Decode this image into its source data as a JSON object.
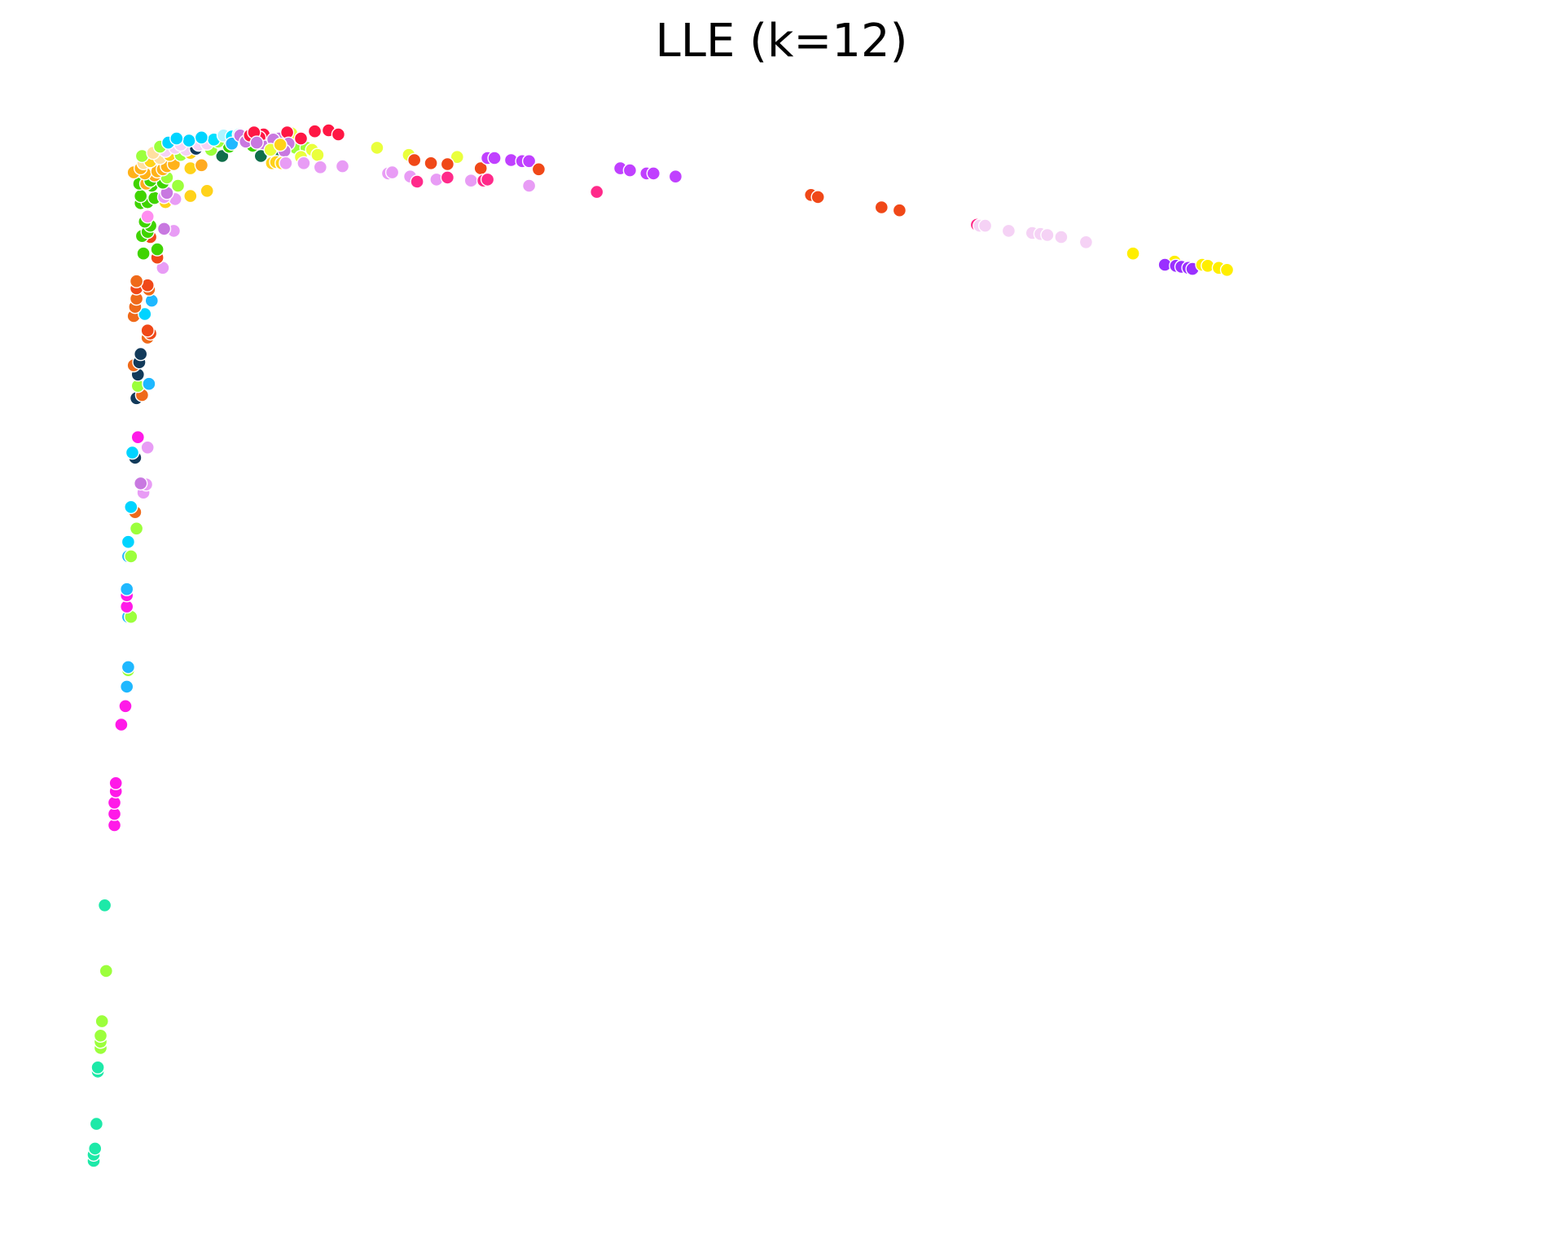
{
  "chart_data": {
    "type": "scatter",
    "title": "LLE (k=12)",
    "xlabel": "",
    "ylabel": "",
    "axes_visible": false,
    "grid": false,
    "legend": "none",
    "xlim": [
      0.0,
      1.0
    ],
    "ylim": [
      0.0,
      1.0
    ],
    "points": [
      {
        "x": 0.0,
        "y": 0.0,
        "color": "#1de9a8"
      },
      {
        "x": 0.0,
        "y": 0.006,
        "color": "#1de9a8"
      },
      {
        "x": 0.001,
        "y": 0.012,
        "color": "#1de9a8"
      },
      {
        "x": 0.002,
        "y": 0.036,
        "color": "#1de9a8"
      },
      {
        "x": 0.003,
        "y": 0.087,
        "color": "#1de9a8"
      },
      {
        "x": 0.003,
        "y": 0.091,
        "color": "#1de9a8"
      },
      {
        "x": 0.005,
        "y": 0.11,
        "color": "#9cff3c"
      },
      {
        "x": 0.005,
        "y": 0.116,
        "color": "#9cff3c"
      },
      {
        "x": 0.005,
        "y": 0.122,
        "color": "#9cff3c"
      },
      {
        "x": 0.006,
        "y": 0.136,
        "color": "#9cff3c"
      },
      {
        "x": 0.009,
        "y": 0.185,
        "color": "#9cff3c"
      },
      {
        "x": 0.008,
        "y": 0.249,
        "color": "#1de9a8"
      },
      {
        "x": 0.015,
        "y": 0.327,
        "color": "#ff1ae8"
      },
      {
        "x": 0.015,
        "y": 0.338,
        "color": "#ff1ae8"
      },
      {
        "x": 0.015,
        "y": 0.349,
        "color": "#ff1ae8"
      },
      {
        "x": 0.016,
        "y": 0.36,
        "color": "#ff1ae8"
      },
      {
        "x": 0.016,
        "y": 0.368,
        "color": "#ff1ae8"
      },
      {
        "x": 0.02,
        "y": 0.425,
        "color": "#ff1ae8"
      },
      {
        "x": 0.023,
        "y": 0.443,
        "color": "#ff1ae8"
      },
      {
        "x": 0.024,
        "y": 0.462,
        "color": "#1fb8ff"
      },
      {
        "x": 0.025,
        "y": 0.478,
        "color": "#9cff3c"
      },
      {
        "x": 0.025,
        "y": 0.481,
        "color": "#1fb8ff"
      },
      {
        "x": 0.025,
        "y": 0.53,
        "color": "#1fb8ff"
      },
      {
        "x": 0.027,
        "y": 0.53,
        "color": "#9cff3c"
      },
      {
        "x": 0.024,
        "y": 0.54,
        "color": "#ff1ae8"
      },
      {
        "x": 0.024,
        "y": 0.551,
        "color": "#ff1ae8"
      },
      {
        "x": 0.024,
        "y": 0.557,
        "color": "#1fb8ff"
      },
      {
        "x": 0.025,
        "y": 0.589,
        "color": "#1fb8ff"
      },
      {
        "x": 0.027,
        "y": 0.589,
        "color": "#9cff3c"
      },
      {
        "x": 0.025,
        "y": 0.603,
        "color": "#00d4ff"
      },
      {
        "x": 0.031,
        "y": 0.616,
        "color": "#9cff3c"
      },
      {
        "x": 0.03,
        "y": 0.632,
        "color": "#ef6a1a"
      },
      {
        "x": 0.027,
        "y": 0.637,
        "color": "#00d4ff"
      },
      {
        "x": 0.036,
        "y": 0.651,
        "color": "#e89cf5"
      },
      {
        "x": 0.038,
        "y": 0.659,
        "color": "#e89cf5"
      },
      {
        "x": 0.034,
        "y": 0.66,
        "color": "#c878e0"
      },
      {
        "x": 0.03,
        "y": 0.685,
        "color": "#123a5a"
      },
      {
        "x": 0.028,
        "y": 0.69,
        "color": "#00d4ff"
      },
      {
        "x": 0.039,
        "y": 0.695,
        "color": "#e89cf5"
      },
      {
        "x": 0.032,
        "y": 0.705,
        "color": "#ff1ae8"
      },
      {
        "x": 0.031,
        "y": 0.743,
        "color": "#123a5a"
      },
      {
        "x": 0.035,
        "y": 0.746,
        "color": "#ef6a1a"
      },
      {
        "x": 0.032,
        "y": 0.755,
        "color": "#9cff3c"
      },
      {
        "x": 0.04,
        "y": 0.757,
        "color": "#1fb8ff"
      },
      {
        "x": 0.032,
        "y": 0.766,
        "color": "#123a5a"
      },
      {
        "x": 0.029,
        "y": 0.775,
        "color": "#ef6a1a"
      },
      {
        "x": 0.033,
        "y": 0.778,
        "color": "#123a5a"
      },
      {
        "x": 0.034,
        "y": 0.786,
        "color": "#123a5a"
      },
      {
        "x": 0.039,
        "y": 0.802,
        "color": "#ef6a1a"
      },
      {
        "x": 0.041,
        "y": 0.806,
        "color": "#f04818"
      },
      {
        "x": 0.039,
        "y": 0.809,
        "color": "#f04818"
      },
      {
        "x": 0.029,
        "y": 0.823,
        "color": "#ef6a1a"
      },
      {
        "x": 0.037,
        "y": 0.825,
        "color": "#00d4ff"
      },
      {
        "x": 0.03,
        "y": 0.832,
        "color": "#ef6a1a"
      },
      {
        "x": 0.042,
        "y": 0.838,
        "color": "#1fb8ff"
      },
      {
        "x": 0.031,
        "y": 0.84,
        "color": "#ef6a1a"
      },
      {
        "x": 0.04,
        "y": 0.849,
        "color": "#ef6a1a"
      },
      {
        "x": 0.031,
        "y": 0.85,
        "color": "#f04818"
      },
      {
        "x": 0.039,
        "y": 0.853,
        "color": "#f04818"
      },
      {
        "x": 0.031,
        "y": 0.857,
        "color": "#ef6a1a"
      },
      {
        "x": 0.05,
        "y": 0.87,
        "color": "#e89cf5"
      },
      {
        "x": 0.046,
        "y": 0.88,
        "color": "#f04818"
      },
      {
        "x": 0.036,
        "y": 0.884,
        "color": "#3fd400"
      },
      {
        "x": 0.046,
        "y": 0.888,
        "color": "#3fd400"
      },
      {
        "x": 0.041,
        "y": 0.9,
        "color": "#f04818"
      },
      {
        "x": 0.035,
        "y": 0.901,
        "color": "#3fd400"
      },
      {
        "x": 0.039,
        "y": 0.905,
        "color": "#3fd400"
      },
      {
        "x": 0.058,
        "y": 0.906,
        "color": "#e89cf5"
      },
      {
        "x": 0.051,
        "y": 0.908,
        "color": "#c878e0"
      },
      {
        "x": 0.041,
        "y": 0.911,
        "color": "#3fd400"
      },
      {
        "x": 0.037,
        "y": 0.915,
        "color": "#3fd400"
      },
      {
        "x": 0.039,
        "y": 0.92,
        "color": "#ff8ef0"
      },
      {
        "x": 0.034,
        "y": 0.933,
        "color": "#3fd400"
      },
      {
        "x": 0.039,
        "y": 0.934,
        "color": "#3fd400"
      },
      {
        "x": 0.052,
        "y": 0.934,
        "color": "#ffd21a"
      },
      {
        "x": 0.059,
        "y": 0.937,
        "color": "#e89cf5"
      },
      {
        "x": 0.044,
        "y": 0.938,
        "color": "#3fd400"
      },
      {
        "x": 0.051,
        "y": 0.939,
        "color": "#e89cf5"
      },
      {
        "x": 0.07,
        "y": 0.94,
        "color": "#ffd21a"
      },
      {
        "x": 0.034,
        "y": 0.94,
        "color": "#3fd400"
      },
      {
        "x": 0.053,
        "y": 0.943,
        "color": "#c878e0"
      },
      {
        "x": 0.082,
        "y": 0.945,
        "color": "#ffd21a"
      },
      {
        "x": 0.042,
        "y": 0.95,
        "color": "#3fd400"
      },
      {
        "x": 0.061,
        "y": 0.95,
        "color": "#9cff3c"
      },
      {
        "x": 0.033,
        "y": 0.952,
        "color": "#3fd400"
      },
      {
        "x": 0.038,
        "y": 0.952,
        "color": "#ffaa20"
      },
      {
        "x": 0.05,
        "y": 0.953,
        "color": "#3fd400"
      },
      {
        "x": 0.041,
        "y": 0.955,
        "color": "#3fd400"
      },
      {
        "x": 0.053,
        "y": 0.958,
        "color": "#9cff3c"
      },
      {
        "x": 0.044,
        "y": 0.96,
        "color": "#ffaa20"
      },
      {
        "x": 0.037,
        "y": 0.962,
        "color": "#ffb21a"
      },
      {
        "x": 0.029,
        "y": 0.963,
        "color": "#ffb21a"
      },
      {
        "x": 0.046,
        "y": 0.964,
        "color": "#ffb21a"
      },
      {
        "x": 0.05,
        "y": 0.966,
        "color": "#ffb21a"
      },
      {
        "x": 0.034,
        "y": 0.967,
        "color": "#ffb21a"
      },
      {
        "x": 0.07,
        "y": 0.967,
        "color": "#ffd21a"
      },
      {
        "x": 0.053,
        "y": 0.969,
        "color": "#ffb21a"
      },
      {
        "x": 0.078,
        "y": 0.97,
        "color": "#ffaa20"
      },
      {
        "x": 0.058,
        "y": 0.971,
        "color": "#ffb21a"
      },
      {
        "x": 0.036,
        "y": 0.972,
        "color": "#ffe0a0"
      },
      {
        "x": 0.041,
        "y": 0.974,
        "color": "#ffd21a"
      },
      {
        "x": 0.048,
        "y": 0.977,
        "color": "#ffe0a0"
      },
      {
        "x": 0.035,
        "y": 0.979,
        "color": "#9cff3c"
      },
      {
        "x": 0.055,
        "y": 0.98,
        "color": "#ffd21a"
      },
      {
        "x": 0.063,
        "y": 0.98,
        "color": "#9cff3c"
      },
      {
        "x": 0.093,
        "y": 0.979,
        "color": "#0f6e4a"
      },
      {
        "x": 0.043,
        "y": 0.982,
        "color": "#ffe0a0"
      },
      {
        "x": 0.07,
        "y": 0.982,
        "color": "#ffd21a"
      },
      {
        "x": 0.052,
        "y": 0.984,
        "color": "#f5d2f5"
      },
      {
        "x": 0.067,
        "y": 0.985,
        "color": "#f5d2f5"
      },
      {
        "x": 0.074,
        "y": 0.986,
        "color": "#123a5a"
      },
      {
        "x": 0.085,
        "y": 0.985,
        "color": "#9cff3c"
      },
      {
        "x": 0.059,
        "y": 0.987,
        "color": "#f5d2f5"
      },
      {
        "x": 0.048,
        "y": 0.988,
        "color": "#9cff3c"
      },
      {
        "x": 0.098,
        "y": 0.988,
        "color": "#3fd400"
      },
      {
        "x": 0.076,
        "y": 0.99,
        "color": "#f5d2f5"
      },
      {
        "x": 0.063,
        "y": 0.99,
        "color": "#f5d2f5"
      },
      {
        "x": 0.082,
        "y": 0.991,
        "color": "#f5d2f5"
      },
      {
        "x": 0.115,
        "y": 0.989,
        "color": "#3fd400"
      },
      {
        "x": 0.054,
        "y": 0.992,
        "color": "#00d4ff"
      },
      {
        "x": 0.09,
        "y": 0.993,
        "color": "#9cff3c"
      },
      {
        "x": 0.069,
        "y": 0.994,
        "color": "#00d4ff"
      },
      {
        "x": 0.087,
        "y": 0.995,
        "color": "#00e0ff"
      },
      {
        "x": 0.06,
        "y": 0.996,
        "color": "#00d4ff"
      },
      {
        "x": 0.078,
        "y": 0.997,
        "color": "#00d4ff"
      },
      {
        "x": 0.094,
        "y": 0.999,
        "color": "#b0f5ff"
      },
      {
        "x": 0.1,
        "y": 0.998,
        "color": "#00e0ff"
      },
      {
        "x": 0.105,
        "y": 1.0,
        "color": "#b0f5ff"
      },
      {
        "x": 0.137,
        "y": 0.99,
        "color": "#9cff3c"
      },
      {
        "x": 0.147,
        "y": 0.986,
        "color": "#9cff3c"
      },
      {
        "x": 0.1,
        "y": 0.991,
        "color": "#1fb8ff"
      }
    ],
    "points_top": [
      {
        "x": 0.106,
        "y": 0.999,
        "color": "#c878e0"
      },
      {
        "x": 0.11,
        "y": 0.993,
        "color": "#c878e0"
      },
      {
        "x": 0.121,
        "y": 0.995,
        "color": "#3fd400"
      },
      {
        "x": 0.146,
        "y": 0.987,
        "color": "#9cff3c"
      },
      {
        "x": 0.154,
        "y": 0.987,
        "color": "#9cff3c"
      },
      {
        "x": 0.113,
        "y": 0.999,
        "color": "#ff1744"
      },
      {
        "x": 0.123,
        "y": 1.0,
        "color": "#ff1744"
      },
      {
        "x": 0.134,
        "y": 0.996,
        "color": "#c878e0"
      },
      {
        "x": 0.143,
        "y": 1.001,
        "color": "#eaff3c"
      }
    ]
  }
}
